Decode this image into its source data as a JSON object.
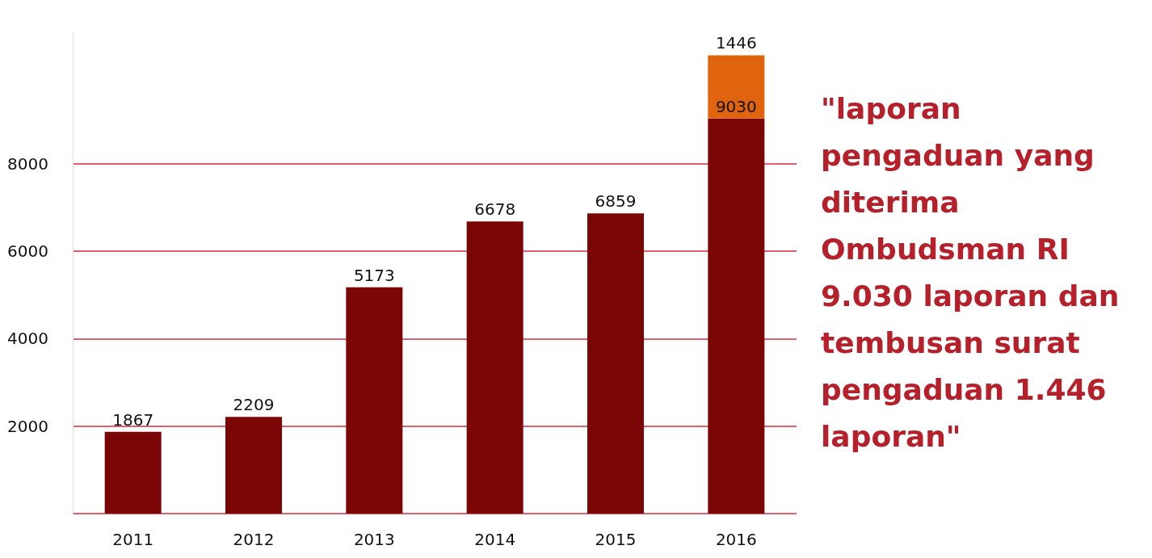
{
  "chart_data": {
    "type": "bar",
    "stacked": true,
    "categories": [
      "2011",
      "2012",
      "2013",
      "2014",
      "2015",
      "2016"
    ],
    "series": [
      {
        "color": "#7a0606",
        "values": [
          1867,
          2209,
          5173,
          6678,
          6859,
          9030
        ]
      },
      {
        "color": "#e0640e",
        "values": [
          null,
          null,
          null,
          null,
          null,
          1446
        ]
      }
    ],
    "ylim": [
      0,
      11000
    ],
    "yticks": [
      {
        "value": 0,
        "label": null
      },
      2000,
      4000,
      6000,
      8000
    ],
    "grid": "y",
    "data_labels": true,
    "annotations": [
      "\"laporan pengaduan yang diterima Ombudsman RI 9.030 laporan dan tembusan surat pengaduan 1.446 laporan\""
    ]
  }
}
